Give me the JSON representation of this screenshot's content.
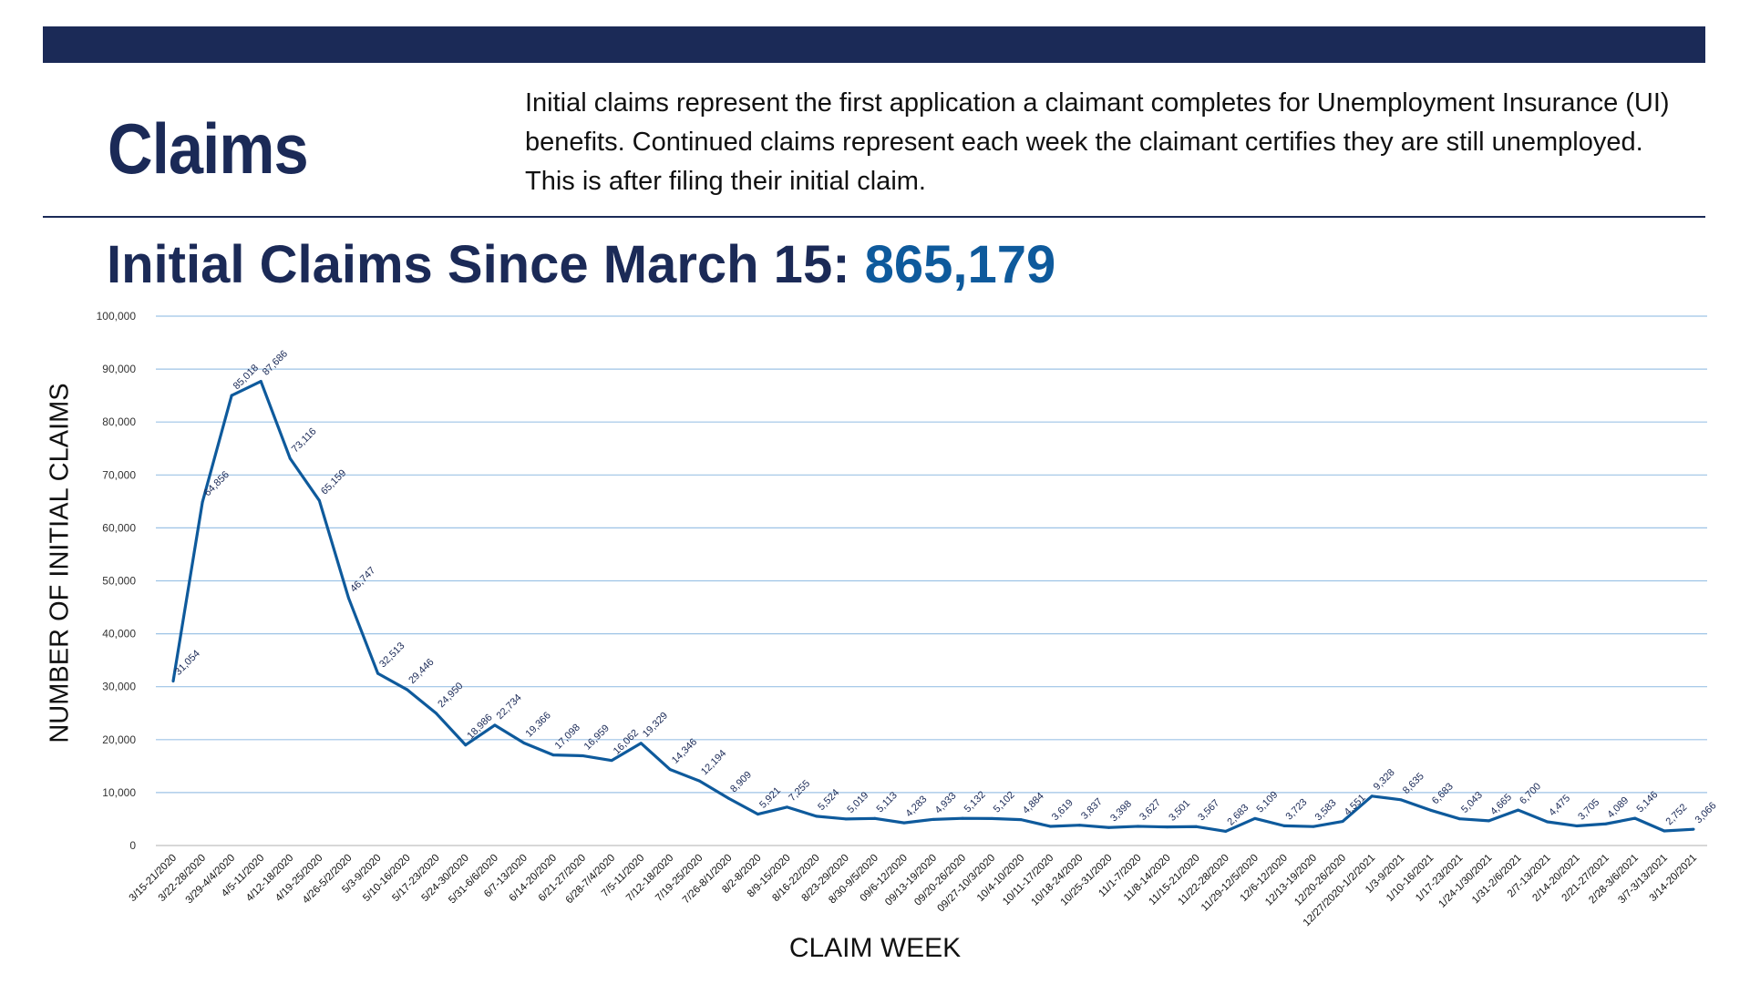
{
  "header": {
    "title": "Claims",
    "description": "Initial claims represent the first application a claimant completes for Unemployment Insurance (UI) benefits. Continued claims represent each week the claimant certifies they are still unemployed. This is after filing their initial claim.",
    "subtitle_label": "Initial Claims Since March 15: ",
    "subtitle_value": "865,179"
  },
  "colors": {
    "navy": "#1b2a57",
    "accent": "#0e5a9c",
    "grid": "#9dc3e6"
  },
  "chart_data": {
    "type": "line",
    "xlabel": "CLAIM WEEK",
    "ylabel": "NUMBER OF INITIAL CLAIMS",
    "ylim": [
      0,
      100000
    ],
    "yticks": [
      0,
      10000,
      20000,
      30000,
      40000,
      50000,
      60000,
      70000,
      80000,
      90000,
      100000
    ],
    "ytick_labels": [
      "0",
      "10,000",
      "20,000",
      "30,000",
      "40,000",
      "50,000",
      "60,000",
      "70,000",
      "80,000",
      "90,000",
      "100,000"
    ],
    "grid": true,
    "categories": [
      "3/15-21/2020",
      "3/22-28/2020",
      "3/29-4/4/2020",
      "4/5-11/2020",
      "4/12-18/2020",
      "4/19-25/2020",
      "4/26-5/2/2020",
      "5/3-9/2020",
      "5/10-16/2020",
      "5/17-23/2020",
      "5/24-30/2020",
      "5/31-6/6/2020",
      "6/7-13/2020",
      "6/14-20/2020",
      "6/21-27/2020",
      "6/28-7/4/2020",
      "7/5-11/2020",
      "7/12-18/2020",
      "7/19-25/2020",
      "7/26-8/1/2020",
      "8/2-8/2020",
      "8/9-15/2020",
      "8/16-22/2020",
      "8/23-29/2020",
      "8/30-9/5/2020",
      "09/6-12/2020",
      "09/13-19/2020",
      "09/20-26/2020",
      "09/27-10/3/2020",
      "10/4-10/2020",
      "10/11-17/2020",
      "10/18-24/2020",
      "10/25-31/2020",
      "11/1-7/2020",
      "11/8-14/2020",
      "11/15-21/2020",
      "11/22-28/2020",
      "11/29-12/5/2020",
      "12/6-12/2020",
      "12/13-19/2020",
      "12/20-26/2020",
      "12/27/2020-1/2/2021",
      "1/3-9/2021",
      "1/10-16/2021",
      "1/17-23/2021",
      "1/24-1/30/2021",
      "1/31-2/6/2021",
      "2/7-13/2021",
      "2/14-20/2021",
      "2/21-27/2021",
      "2/28-3/6/2021",
      "3/7-3/13/2021",
      "3/14-20/2021"
    ],
    "values": [
      31054,
      64856,
      85018,
      87686,
      73116,
      65159,
      46747,
      32513,
      29446,
      24950,
      18986,
      22734,
      19366,
      17098,
      16959,
      16062,
      19329,
      14346,
      12194,
      8909,
      5921,
      7255,
      5524,
      5019,
      5113,
      4283,
      4933,
      5132,
      5102,
      4884,
      3619,
      3837,
      3398,
      3627,
      3501,
      3567,
      2683,
      5109,
      3723,
      3583,
      4551,
      9328,
      8635,
      6683,
      5043,
      4665,
      6700,
      4475,
      3705,
      4089,
      5146,
      2752,
      3066
    ]
  }
}
